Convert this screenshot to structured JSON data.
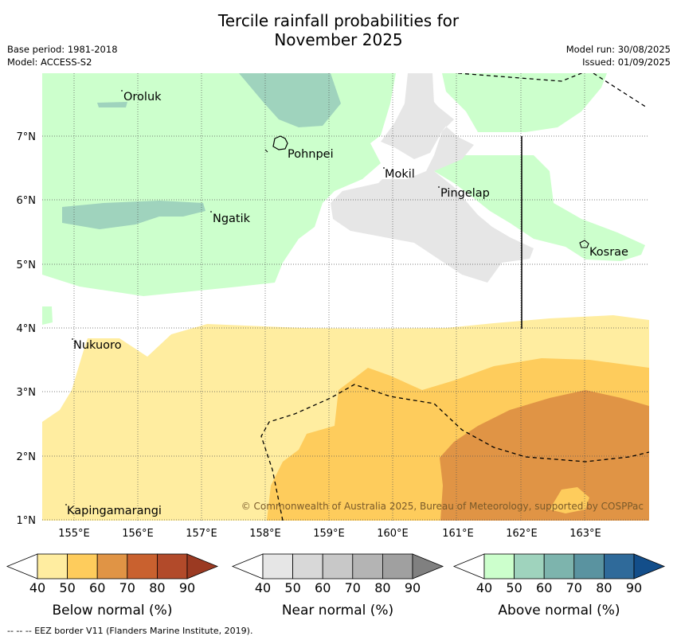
{
  "title_line1": "Tercile rainfall probabilities for",
  "title_line2": "November 2025",
  "meta": {
    "base_period": "Base period: 1981-2018",
    "model": "Model: ACCESS-S2",
    "model_run": "Model run: 30/08/2025",
    "issued": "Issued: 01/09/2025"
  },
  "map": {
    "lon_ticks": [
      "155°E",
      "156°E",
      "157°E",
      "158°E",
      "159°E",
      "160°E",
      "161°E",
      "162°E",
      "163°E"
    ],
    "lat_ticks": [
      "1°N",
      "2°N",
      "3°N",
      "4°N",
      "5°N",
      "6°N",
      "7°N"
    ],
    "places": [
      {
        "name": "Oroluk"
      },
      {
        "name": "Pohnpei"
      },
      {
        "name": "Mokil"
      },
      {
        "name": "Pingelap"
      },
      {
        "name": "Ngatik"
      },
      {
        "name": "Kosrae"
      },
      {
        "name": "Nukuoro"
      },
      {
        "name": "Kapingamarangi"
      }
    ],
    "copyright": "© Commonwealth of Australia 2025, Bureau of Meteorology, supported by COSPPac",
    "colors": {
      "below_40": "#ffeda0",
      "below_50": "#fecc5c",
      "below_60": "#e09445",
      "near_40": "#e6e6e6",
      "above_40": "#ccffcc",
      "above_50": "#9fd3bd"
    }
  },
  "legends": [
    {
      "caption": "Below normal (%)",
      "ticks": [
        "40",
        "50",
        "60",
        "70",
        "80",
        "90"
      ],
      "colors": [
        "#ffeda0",
        "#fecc5c",
        "#e09445",
        "#c9612f",
        "#b24a2a",
        "#9b3a22"
      ]
    },
    {
      "caption": "Near normal (%)",
      "ticks": [
        "40",
        "50",
        "60",
        "70",
        "80",
        "90"
      ],
      "colors": [
        "#e6e6e6",
        "#d8d8d8",
        "#c8c8c8",
        "#b4b4b4",
        "#a0a0a0",
        "#808080"
      ]
    },
    {
      "caption": "Above normal (%)",
      "ticks": [
        "40",
        "50",
        "60",
        "70",
        "80",
        "90"
      ],
      "colors": [
        "#ccffcc",
        "#9fd3bd",
        "#7db4ad",
        "#5a93a0",
        "#2f6a9a",
        "#134e8a"
      ]
    }
  ],
  "footnote": "--  --  -- EEZ border V11 (Flanders Marine Institute, 2019)."
}
